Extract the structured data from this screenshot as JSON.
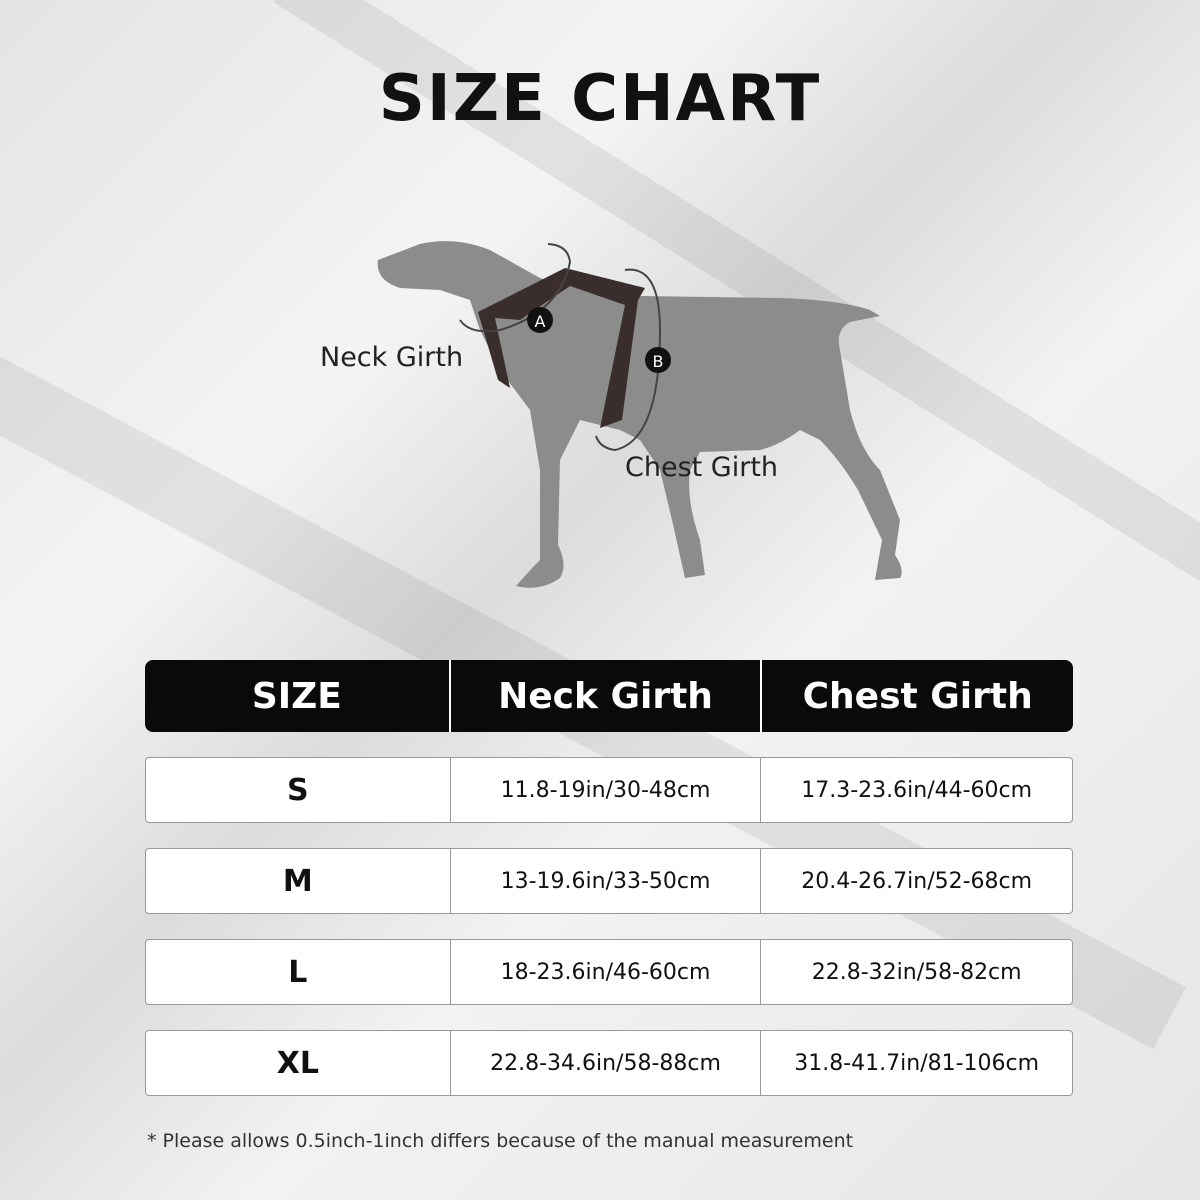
{
  "title": "SIZE CHART",
  "diagram": {
    "neck_label": "Neck Girth",
    "chest_label": "Chest Girth",
    "marker_a": "A",
    "marker_b": "B"
  },
  "table": {
    "headers": [
      "SIZE",
      "Neck Girth",
      "Chest Girth"
    ],
    "rows": [
      {
        "size": "S",
        "neck": "11.8-19in/30-48cm",
        "chest": "17.3-23.6in/44-60cm"
      },
      {
        "size": "M",
        "neck": "13-19.6in/33-50cm",
        "chest": "20.4-26.7in/52-68cm"
      },
      {
        "size": "L",
        "neck": "18-23.6in/46-60cm",
        "chest": "22.8-32in/58-82cm"
      },
      {
        "size": "XL",
        "neck": "22.8-34.6in/58-88cm",
        "chest": "31.8-41.7in/81-106cm"
      }
    ]
  },
  "footnote": "* Please allows 0.5inch-1inch differs because of the  manual measurement"
}
